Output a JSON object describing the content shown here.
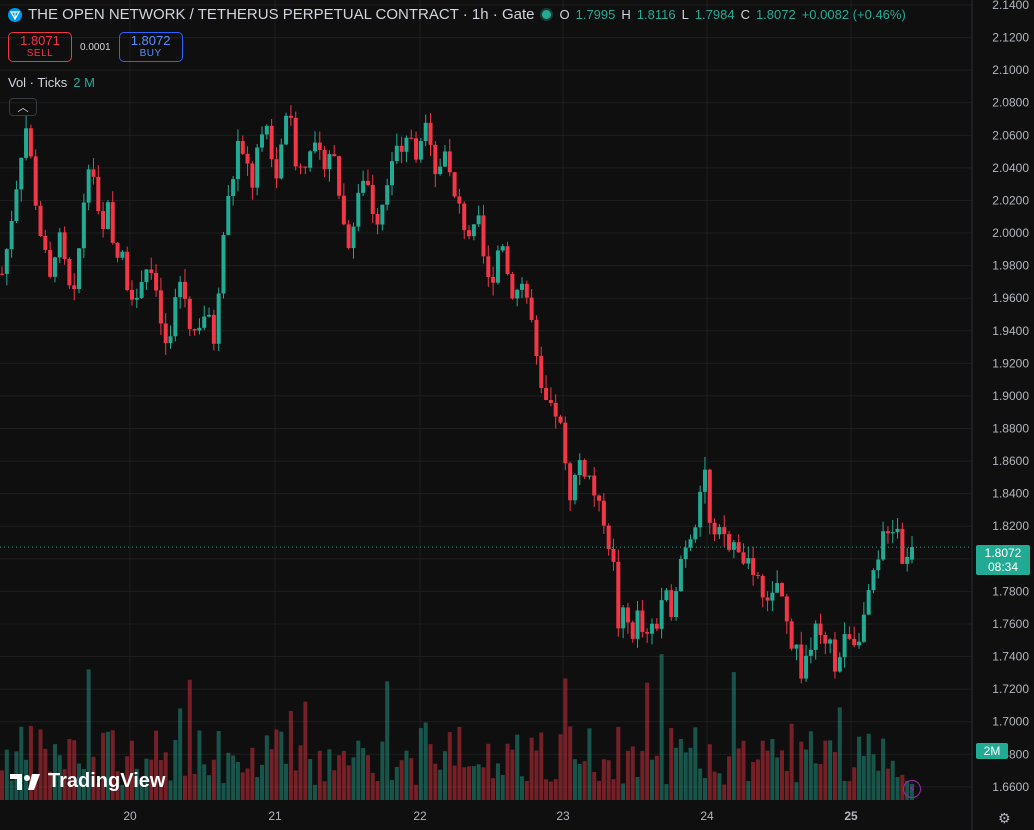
{
  "header": {
    "title": "THE OPEN NETWORK / TETHERUS PERPETUAL CONTRACT · 1h · Gate",
    "o_label": "O",
    "o": "1.7995",
    "h_label": "H",
    "h": "1.8116",
    "l_label": "L",
    "l": "1.7984",
    "c_label": "C",
    "c": "1.8072",
    "change": "+0.0082 (+0.46%)"
  },
  "trade": {
    "sell_price": "1.8071",
    "sell_label": "SELL",
    "spread": "0.0001",
    "buy_price": "1.8072",
    "buy_label": "BUY"
  },
  "volume_legend": {
    "label": "Vol · Ticks",
    "value": "2 M"
  },
  "last_price": {
    "price": "1.8072",
    "countdown": "08:34"
  },
  "volume_tag": "2M",
  "branding": "TradingView",
  "colors": {
    "up": "#22ab94",
    "down": "#f23645",
    "background": "#0f0f0f",
    "grid": "#1e1e1e"
  },
  "chart_data": {
    "type": "candlestick",
    "y_ticks": [
      "2.1400",
      "2.1200",
      "2.1000",
      "2.0800",
      "2.0600",
      "2.0400",
      "2.0200",
      "2.0000",
      "1.9800",
      "1.9600",
      "1.9400",
      "1.9200",
      "1.9000",
      "1.8800",
      "1.8600",
      "1.8400",
      "1.8200",
      "1.8000",
      "1.7800",
      "1.7600",
      "1.7400",
      "1.7200",
      "1.7000",
      "1.6800",
      "1.6600"
    ],
    "ylim": [
      1.655,
      2.14
    ],
    "x_ticks": [
      "20",
      "21",
      "22",
      "23",
      "24",
      "25"
    ],
    "grid": true,
    "price_path": [
      1.975,
      1.99,
      2.01,
      2.03,
      2.05,
      2.065,
      2.045,
      2.02,
      2.0,
      1.985,
      1.97,
      1.99,
      1.995,
      1.98,
      1.965,
      1.96,
      1.99,
      2.02,
      2.045,
      2.035,
      2.01,
      2.0,
      2.015,
      1.99,
      1.985,
      1.985,
      1.97,
      1.965,
      1.955,
      1.975,
      1.98,
      1.975,
      1.96,
      1.945,
      1.93,
      1.935,
      1.96,
      1.97,
      1.96,
      1.945,
      1.94,
      1.945,
      1.95,
      1.945,
      1.935,
      1.96,
      2.0,
      2.02,
      2.035,
      2.055,
      2.045,
      2.04,
      2.03,
      2.05,
      2.055,
      2.065,
      2.045,
      2.035,
      2.05,
      2.075,
      2.065,
      2.045,
      2.04,
      2.045,
      2.055,
      2.05,
      2.045,
      2.045,
      2.05,
      2.045,
      2.025,
      2.005,
      1.995,
      2.005,
      2.02,
      2.035,
      2.03,
      2.015,
      2.01,
      2.02,
      2.035,
      2.045,
      2.05,
      2.045,
      2.055,
      2.06,
      2.05,
      2.055,
      2.065,
      2.06,
      2.04,
      2.04,
      2.055,
      2.035,
      2.02,
      2.015,
      2.005,
      2.0,
      2.0,
      2.005,
      1.985,
      1.97,
      1.975,
      1.99,
      1.995,
      1.975,
      1.965,
      1.965,
      1.97,
      1.96,
      1.945,
      1.92,
      1.9,
      1.895,
      1.89,
      1.89,
      1.88,
      1.855,
      1.84,
      1.85,
      1.86,
      1.855,
      1.85,
      1.84,
      1.83,
      1.825,
      1.81,
      1.795,
      1.76,
      1.765,
      1.76,
      1.755,
      1.765,
      1.755,
      1.75,
      1.755,
      1.76,
      1.775,
      1.775,
      1.77,
      1.785,
      1.8,
      1.81,
      1.815,
      1.825,
      1.845,
      1.855,
      1.82,
      1.81,
      1.815,
      1.815,
      1.805,
      1.81,
      1.8,
      1.8,
      1.795,
      1.785,
      1.79,
      1.775,
      1.77,
      1.775,
      1.785,
      1.775,
      1.76,
      1.75,
      1.745,
      1.73,
      1.74,
      1.745,
      1.755,
      1.75,
      1.745,
      1.745,
      1.735,
      1.74,
      1.75,
      1.755,
      1.75,
      1.755,
      1.765,
      1.775,
      1.79,
      1.795,
      1.815,
      1.82,
      1.82,
      1.82,
      1.8,
      1.8,
      1.808
    ],
    "volume_bars": 190
  }
}
